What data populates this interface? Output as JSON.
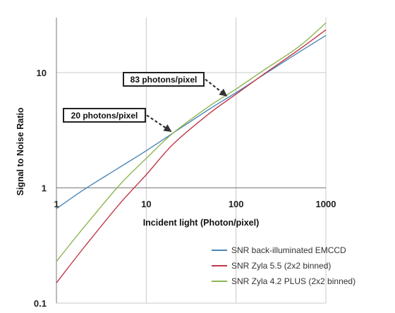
{
  "chart_data": {
    "type": "line",
    "title": "",
    "xlabel": "Incident light (Photon/pixel)",
    "ylabel": "Signal to Noise Ratio",
    "x_scale": "log",
    "y_scale": "log",
    "xlim": [
      1,
      1000
    ],
    "ylim": [
      0.1,
      30
    ],
    "x_ticks": [
      "1",
      "10",
      "100",
      "1000"
    ],
    "y_ticks": [
      "0.1",
      "1",
      "10"
    ],
    "grid": "major gridlines on both axes",
    "legend_position": "bottom-right",
    "x": [
      1,
      2,
      5,
      10,
      20,
      50,
      100,
      200,
      500,
      1000
    ],
    "series": [
      {
        "name": "SNR back-illuminated EMCCD",
        "color": "#4a86b8",
        "values": [
          0.66,
          0.96,
          1.5,
          2.1,
          3.0,
          4.8,
          6.7,
          9.5,
          15,
          21
        ]
      },
      {
        "name": "SNR Zyla 5.5 (2x2 binned)",
        "color": "#c0394a",
        "values": [
          0.15,
          0.3,
          0.72,
          1.3,
          2.4,
          4.4,
          6.5,
          9.6,
          15.8,
          23.5
        ]
      },
      {
        "name": "SNR Zyla 4.2 PLUS (2x2 binned)",
        "color": "#8db652",
        "values": [
          0.23,
          0.45,
          1.05,
          1.8,
          3.0,
          5.1,
          7.2,
          10.4,
          16.8,
          27
        ]
      }
    ],
    "annotations": [
      {
        "text": "83 photons/pixel",
        "x": 83,
        "y": 6.1
      },
      {
        "text": "20 photons/pixel",
        "x": 20,
        "y": 3.0
      }
    ]
  }
}
